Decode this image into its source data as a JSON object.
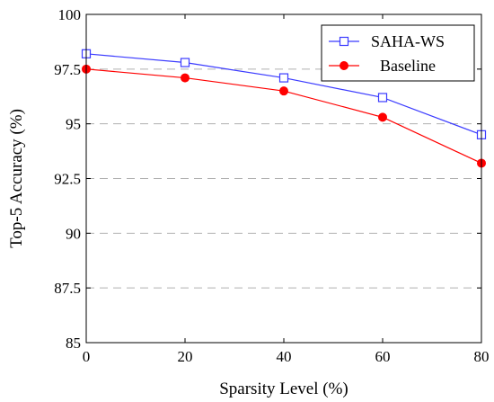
{
  "chart_data": {
    "type": "line",
    "title": "",
    "xlabel": "Sparsity Level (%)",
    "ylabel": "Top-5 Accuracy (%)",
    "x": [
      0,
      20,
      40,
      60,
      80
    ],
    "xlim": [
      0,
      80
    ],
    "ylim": [
      85,
      100
    ],
    "xticks": [
      0,
      20,
      40,
      60,
      80
    ],
    "yticks": [
      85,
      87.5,
      90,
      92.5,
      95,
      97.5,
      100
    ],
    "xtick_labels": [
      "0",
      "20",
      "40",
      "60",
      "80"
    ],
    "ytick_labels": [
      "85",
      "87.5",
      "90",
      "92.5",
      "95",
      "97.5",
      "100"
    ],
    "grid": "horizontal-dashed",
    "legend_position": "top-right",
    "series": [
      {
        "name": "SAHA-WS",
        "color": "#3b3bff",
        "marker": "open-square",
        "values": [
          98.2,
          97.8,
          97.1,
          96.2,
          94.5
        ]
      },
      {
        "name": "Baseline",
        "color": "#ff0000",
        "marker": "filled-circle",
        "values": [
          97.5,
          97.1,
          96.5,
          95.3,
          93.2
        ]
      }
    ]
  }
}
